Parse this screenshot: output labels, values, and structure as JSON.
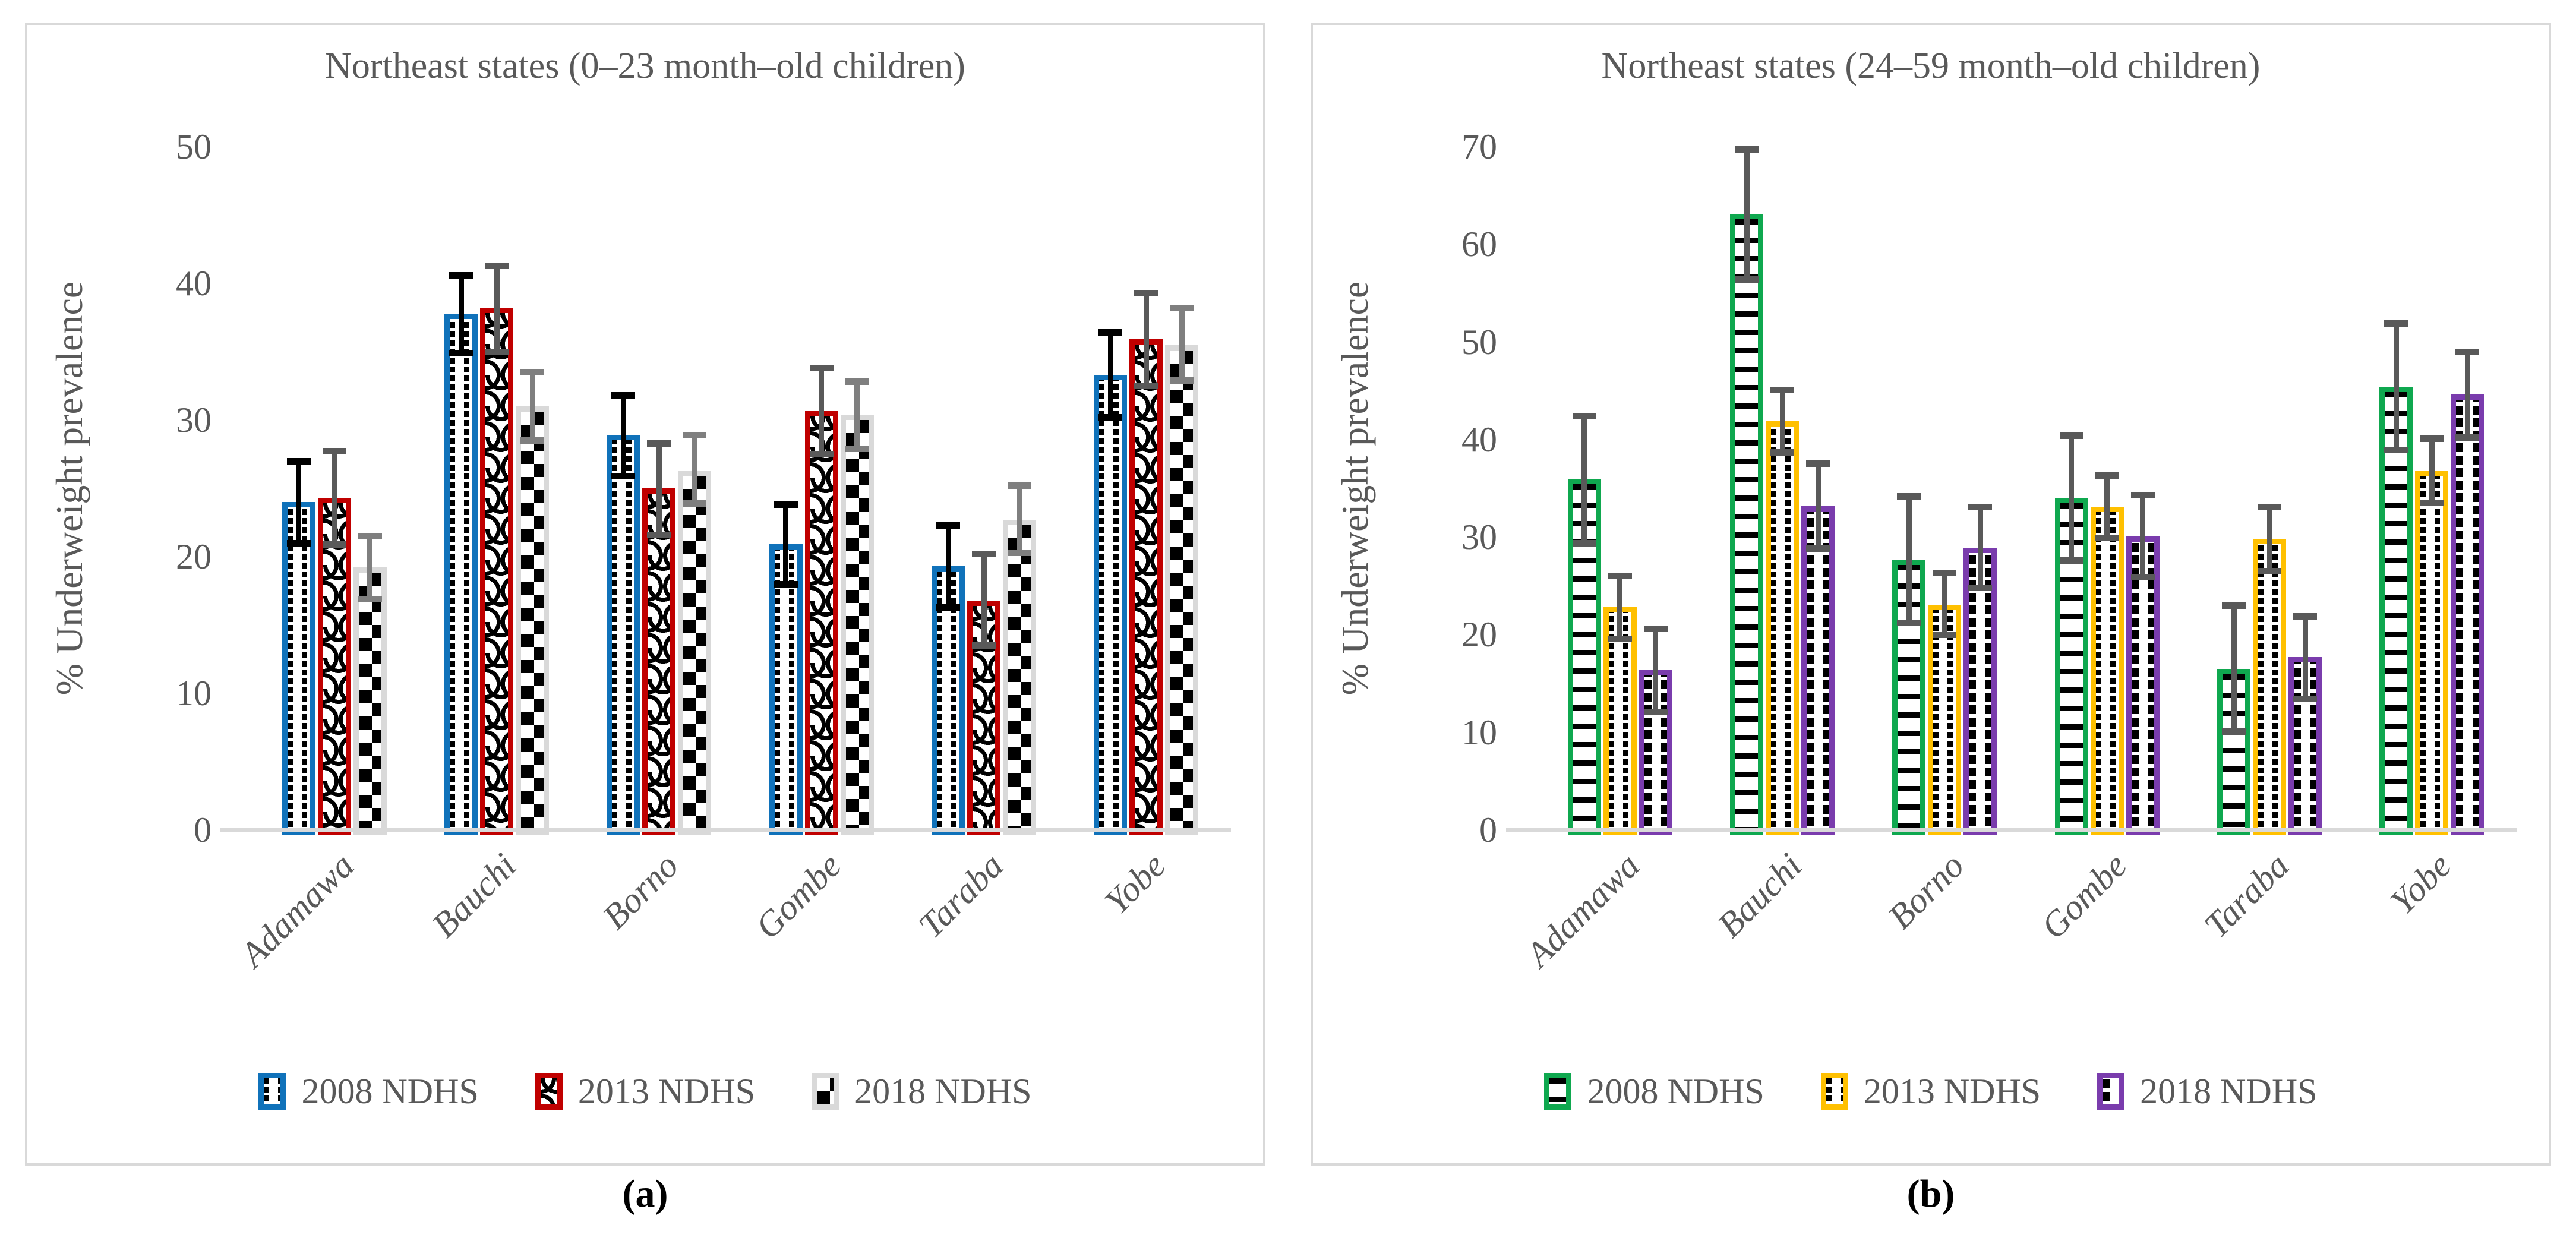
{
  "figure": {
    "background": "#FFFFFF",
    "panel_border_color": "#D9D9D9",
    "text_color": "#595959",
    "captions": [
      "(a)",
      "(b)"
    ]
  },
  "chart_data": [
    {
      "type": "bar",
      "panel": "a",
      "title": "Northeast states (0–23 month–old children)",
      "ylabel": "% Underweight prevalence",
      "xlabel": "",
      "ylim": [
        0,
        50
      ],
      "ytick_step": 10,
      "grid": false,
      "legend_position": "bottom",
      "error_bars": true,
      "categories": [
        "Adamawa",
        "Bauchi",
        "Borno",
        "Gombe",
        "Taraba",
        "Yobe"
      ],
      "series": [
        {
          "name": "2008 NDHS",
          "border_color": "#1072BA",
          "pattern": "dots",
          "errorbar_color": "#000000",
          "values": [
            24.0,
            37.8,
            28.9,
            20.9,
            19.3,
            33.3
          ],
          "err_low": [
            21.0,
            34.9,
            25.9,
            18.0,
            16.3,
            30.2
          ],
          "err_high": [
            27.0,
            40.6,
            31.8,
            23.8,
            22.3,
            36.4
          ]
        },
        {
          "name": "2013 NDHS",
          "border_color": "#C00000",
          "pattern": "scales",
          "errorbar_color": "#595959",
          "values": [
            24.3,
            38.2,
            25.0,
            30.7,
            16.8,
            35.9
          ],
          "err_low": [
            20.9,
            35.0,
            21.6,
            27.5,
            13.5,
            32.5
          ],
          "err_high": [
            27.7,
            41.3,
            28.3,
            33.8,
            20.2,
            39.3
          ]
        },
        {
          "name": "2018 NDHS",
          "border_color": "#D9D9D9",
          "pattern": "checker",
          "errorbar_color": "#7F7F7F",
          "values": [
            19.2,
            31.0,
            26.3,
            30.4,
            22.7,
            35.5
          ],
          "err_low": [
            16.9,
            28.5,
            23.9,
            27.9,
            20.3,
            32.9
          ],
          "err_high": [
            21.5,
            33.5,
            28.9,
            32.8,
            25.2,
            38.2
          ]
        }
      ]
    },
    {
      "type": "bar",
      "panel": "b",
      "title": "Northeast states (24–59 month–old children)",
      "ylabel": "% Underweight prevalence",
      "xlabel": "",
      "ylim": [
        0,
        70
      ],
      "ytick_step": 10,
      "grid": false,
      "legend_position": "bottom",
      "error_bars": true,
      "categories": [
        "Adamawa",
        "Bauchi",
        "Borno",
        "Gombe",
        "Taraba",
        "Yobe"
      ],
      "series": [
        {
          "name": "2008 NDHS",
          "border_color": "#0FA84F",
          "pattern": "hstripes",
          "errorbar_color": "#595959",
          "values": [
            36.0,
            63.1,
            27.7,
            34.0,
            16.5,
            45.4
          ],
          "err_low": [
            29.4,
            56.4,
            21.2,
            27.6,
            10.1,
            38.9
          ],
          "err_high": [
            42.4,
            69.7,
            34.2,
            40.4,
            23.0,
            51.9
          ]
        },
        {
          "name": "2013 NDHS",
          "border_color": "#FFC000",
          "pattern": "dots",
          "errorbar_color": "#595959",
          "values": [
            22.8,
            41.9,
            23.1,
            33.1,
            29.8,
            36.8
          ],
          "err_low": [
            19.6,
            38.7,
            20.0,
            29.9,
            26.5,
            33.5
          ],
          "err_high": [
            26.0,
            45.1,
            26.3,
            36.3,
            33.1,
            40.1
          ]
        },
        {
          "name": "2018 NDHS",
          "border_color": "#7A3CAD",
          "pattern": "blocks",
          "errorbar_color": "#595959",
          "values": [
            16.4,
            33.2,
            28.9,
            30.1,
            17.7,
            44.6
          ],
          "err_low": [
            12.1,
            28.8,
            24.8,
            25.9,
            13.4,
            40.2
          ],
          "err_high": [
            20.6,
            37.5,
            33.1,
            34.3,
            21.9,
            49.0
          ]
        }
      ]
    }
  ]
}
